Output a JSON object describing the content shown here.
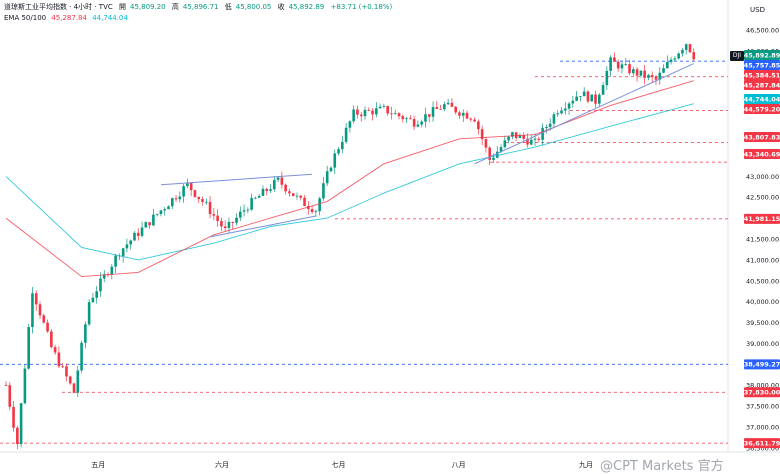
{
  "header": {
    "title": "道琼斯工业平均指数 · 4小时 · TVC",
    "open_label": "開",
    "open": "45,809.20",
    "high_label": "高",
    "high": "45,896.71",
    "low_label": "低",
    "low": "45,800.05",
    "close_label": "收",
    "close": "45,892.89",
    "change": "+83.71 (+0.18%)",
    "ema_label": "EMA 50/100",
    "ema50": "45,287.84",
    "ema100": "44,744.04"
  },
  "currency": "USD",
  "symbol_badge": "DJI",
  "watermark": "@CPT Markets 官方",
  "colors": {
    "up": "#089981",
    "down": "#f23645",
    "ema50": "#f23645",
    "ema100": "#00bcd4",
    "trend": "#2962ff",
    "level": "#f23645",
    "level_blue": "#2962ff"
  },
  "chart_data": {
    "type": "candlestick",
    "title": "道琼斯工业平均指数 · 4小时 · TVC",
    "ylim": [
      36400,
      46600
    ],
    "y_ticks": [
      "46,500.00",
      "46,000.00",
      "45,500.00",
      "44,000.00",
      "43,500.00",
      "43,000.00",
      "42,500.00",
      "42,000.00",
      "41,500.00",
      "41,000.00",
      "40,500.00",
      "40,000.00",
      "39,500.00",
      "39,000.00",
      "38,500.00",
      "38,000.00",
      "37,500.00",
      "37,000.00",
      "36,500.00"
    ],
    "x_labels": [
      "五月",
      "六月",
      "七月",
      "八月",
      "九月"
    ],
    "price_labels": [
      {
        "text": "45,892.89",
        "kind": "current"
      },
      {
        "text": "45,757.85",
        "kind": "blue"
      },
      {
        "text": "45,384.51",
        "kind": "red"
      },
      {
        "text": "45,287.84",
        "kind": "ema50"
      },
      {
        "text": "44,744.04",
        "kind": "ema100"
      },
      {
        "text": "44,579.20",
        "kind": "red"
      },
      {
        "text": "43,807.83",
        "kind": "red"
      },
      {
        "text": "43,340.69",
        "kind": "red"
      },
      {
        "text": "41,981.15",
        "kind": "red"
      },
      {
        "text": "38,499.27",
        "kind": "blue"
      },
      {
        "text": "37,830.00",
        "kind": "red"
      },
      {
        "text": "36,611.79",
        "kind": "red"
      }
    ],
    "levels": [
      {
        "value": 45757.85,
        "color": "blue"
      },
      {
        "value": 45384.51,
        "color": "red"
      },
      {
        "value": 44579.2,
        "color": "red"
      },
      {
        "value": 43807.83,
        "color": "red"
      },
      {
        "value": 43340.69,
        "color": "red"
      },
      {
        "value": 41981.15,
        "color": "red"
      },
      {
        "value": 38499.27,
        "color": "blue"
      },
      {
        "value": 37830.0,
        "color": "red"
      },
      {
        "value": 36611.79,
        "color": "red"
      }
    ],
    "key_points": [
      {
        "t": 0,
        "v": 38000
      },
      {
        "t": 3,
        "v": 36611
      },
      {
        "t": 7,
        "v": 40300
      },
      {
        "t": 12,
        "v": 38900
      },
      {
        "t": 18,
        "v": 37830
      },
      {
        "t": 22,
        "v": 40000
      },
      {
        "t": 30,
        "v": 41200
      },
      {
        "t": 40,
        "v": 42100
      },
      {
        "t": 48,
        "v": 42800
      },
      {
        "t": 53,
        "v": 42300
      },
      {
        "t": 58,
        "v": 41700
      },
      {
        "t": 64,
        "v": 42300
      },
      {
        "t": 72,
        "v": 42900
      },
      {
        "t": 78,
        "v": 42400
      },
      {
        "t": 82,
        "v": 42200
      },
      {
        "t": 86,
        "v": 43300
      },
      {
        "t": 92,
        "v": 44500
      },
      {
        "t": 100,
        "v": 44600
      },
      {
        "t": 108,
        "v": 44300
      },
      {
        "t": 116,
        "v": 44700
      },
      {
        "t": 124,
        "v": 44400
      },
      {
        "t": 128,
        "v": 43400
      },
      {
        "t": 134,
        "v": 44000
      },
      {
        "t": 140,
        "v": 43800
      },
      {
        "t": 146,
        "v": 44600
      },
      {
        "t": 152,
        "v": 45000
      },
      {
        "t": 156,
        "v": 44800
      },
      {
        "t": 160,
        "v": 45750
      },
      {
        "t": 166,
        "v": 45500
      },
      {
        "t": 172,
        "v": 45300
      },
      {
        "t": 176,
        "v": 45800
      },
      {
        "t": 180,
        "v": 46200
      },
      {
        "t": 182,
        "v": 45890
      }
    ],
    "ema50_points": [
      {
        "t": 0,
        "v": 42000
      },
      {
        "t": 20,
        "v": 40600
      },
      {
        "t": 35,
        "v": 40700
      },
      {
        "t": 55,
        "v": 41600
      },
      {
        "t": 70,
        "v": 42000
      },
      {
        "t": 85,
        "v": 42400
      },
      {
        "t": 100,
        "v": 43300
      },
      {
        "t": 120,
        "v": 43900
      },
      {
        "t": 140,
        "v": 44000
      },
      {
        "t": 160,
        "v": 44700
      },
      {
        "t": 182,
        "v": 45290
      }
    ],
    "ema100_points": [
      {
        "t": 0,
        "v": 43000
      },
      {
        "t": 20,
        "v": 41300
      },
      {
        "t": 35,
        "v": 41000
      },
      {
        "t": 55,
        "v": 41400
      },
      {
        "t": 70,
        "v": 41800
      },
      {
        "t": 85,
        "v": 42000
      },
      {
        "t": 100,
        "v": 42600
      },
      {
        "t": 120,
        "v": 43300
      },
      {
        "t": 140,
        "v": 43700
      },
      {
        "t": 160,
        "v": 44200
      },
      {
        "t": 182,
        "v": 44740
      }
    ],
    "trendlines": [
      {
        "from": {
          "t": 54,
          "v": 41550
        },
        "to": {
          "t": 82,
          "v": 42050
        }
      },
      {
        "from": {
          "t": 41,
          "v": 42800
        },
        "to": {
          "t": 81,
          "v": 43050
        }
      },
      {
        "from": {
          "t": 124,
          "v": 43300
        },
        "to": {
          "t": 182,
          "v": 45700
        }
      }
    ]
  }
}
